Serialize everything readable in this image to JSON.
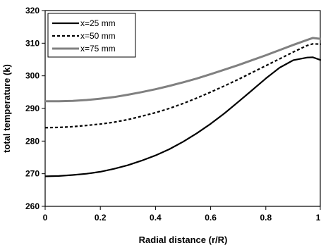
{
  "chart_data": {
    "type": "line",
    "xlabel": "Radial distance (r/R)",
    "ylabel": "total temperature (k)",
    "xlim": [
      0,
      1
    ],
    "ylim": [
      260,
      320
    ],
    "xticks": [
      "0",
      "0.2",
      "0.4",
      "0.6",
      "0.8",
      "1"
    ],
    "yticks": [
      "260",
      "270",
      "280",
      "290",
      "300",
      "310",
      "320"
    ],
    "grid": false,
    "legend_position": "top-left",
    "series": [
      {
        "name": "x=25 mm",
        "color": "#000000",
        "style": "solid",
        "x": [
          0,
          0.05,
          0.1,
          0.15,
          0.2,
          0.25,
          0.3,
          0.35,
          0.4,
          0.45,
          0.5,
          0.55,
          0.6,
          0.65,
          0.7,
          0.75,
          0.8,
          0.85,
          0.9,
          0.95,
          0.97,
          1.0
        ],
        "y": [
          269.2,
          269.3,
          269.6,
          270.0,
          270.6,
          271.5,
          272.6,
          274.0,
          275.6,
          277.5,
          279.8,
          282.4,
          285.3,
          288.5,
          292.0,
          295.6,
          299.2,
          302.5,
          304.8,
          305.6,
          305.7,
          304.8
        ]
      },
      {
        "name": "x=50 mm",
        "color": "#000000",
        "style": "dashed",
        "x": [
          0,
          0.05,
          0.1,
          0.15,
          0.2,
          0.25,
          0.3,
          0.35,
          0.4,
          0.45,
          0.5,
          0.55,
          0.6,
          0.65,
          0.7,
          0.75,
          0.8,
          0.85,
          0.9,
          0.95,
          0.97,
          1.0
        ],
        "y": [
          284.1,
          284.2,
          284.4,
          284.8,
          285.2,
          285.8,
          286.6,
          287.6,
          288.7,
          290.0,
          291.5,
          293.2,
          295.0,
          296.9,
          298.9,
          301.0,
          303.1,
          305.2,
          307.3,
          309.3,
          309.8,
          309.7
        ]
      },
      {
        "name": "x=75 mm",
        "color": "#808080",
        "style": "solid",
        "x": [
          0,
          0.05,
          0.1,
          0.15,
          0.2,
          0.25,
          0.3,
          0.35,
          0.4,
          0.45,
          0.5,
          0.55,
          0.6,
          0.65,
          0.7,
          0.75,
          0.8,
          0.85,
          0.9,
          0.95,
          0.97,
          1.0
        ],
        "y": [
          292.2,
          292.2,
          292.3,
          292.6,
          293.0,
          293.5,
          294.2,
          295.0,
          295.9,
          296.9,
          298.0,
          299.2,
          300.5,
          301.9,
          303.3,
          304.8,
          306.3,
          307.9,
          309.5,
          311.0,
          311.6,
          311.3
        ]
      }
    ]
  }
}
